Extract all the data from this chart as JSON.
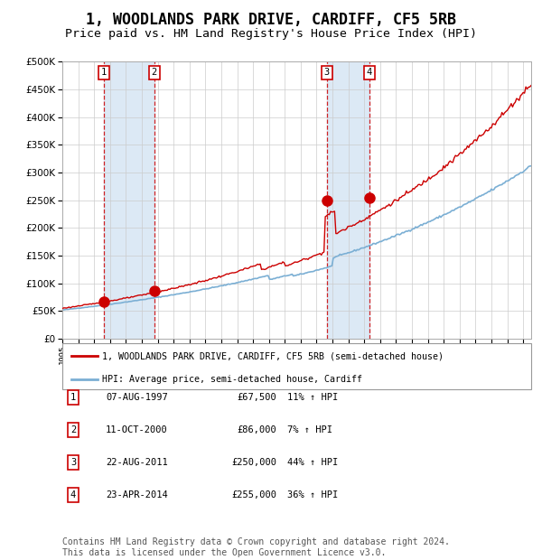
{
  "title": "1, WOODLANDS PARK DRIVE, CARDIFF, CF5 5RB",
  "subtitle": "Price paid vs. HM Land Registry's House Price Index (HPI)",
  "title_fontsize": 12,
  "subtitle_fontsize": 9.5,
  "ylim": [
    0,
    500000
  ],
  "yticks": [
    0,
    50000,
    100000,
    150000,
    200000,
    250000,
    300000,
    350000,
    400000,
    450000,
    500000
  ],
  "xlim_start": 1995.0,
  "xlim_end": 2024.5,
  "hpi_color": "#7bafd4",
  "price_color": "#cc0000",
  "dot_color": "#cc0000",
  "bg_color": "#ffffff",
  "grid_color": "#cccccc",
  "shade_color": "#dce9f5",
  "legend_label_price": "1, WOODLANDS PARK DRIVE, CARDIFF, CF5 5RB (semi-detached house)",
  "legend_label_hpi": "HPI: Average price, semi-detached house, Cardiff",
  "transactions": [
    {
      "num": 1,
      "date": "07-AUG-1997",
      "year": 1997.6,
      "price": 67500,
      "pct": "11%"
    },
    {
      "num": 2,
      "date": "11-OCT-2000",
      "year": 2000.78,
      "price": 86000,
      "pct": "7%"
    },
    {
      "num": 3,
      "date": "22-AUG-2011",
      "year": 2011.64,
      "price": 250000,
      "pct": "44%"
    },
    {
      "num": 4,
      "date": "23-APR-2014",
      "year": 2014.31,
      "price": 255000,
      "pct": "36%"
    }
  ],
  "table_rows": [
    [
      1,
      "07-AUG-1997",
      "£67,500",
      "11% ↑ HPI"
    ],
    [
      2,
      "11-OCT-2000",
      "£86,000",
      "7% ↑ HPI"
    ],
    [
      3,
      "22-AUG-2011",
      "£250,000",
      "44% ↑ HPI"
    ],
    [
      4,
      "23-APR-2014",
      "£255,000",
      "36% ↑ HPI"
    ]
  ],
  "footnote": "Contains HM Land Registry data © Crown copyright and database right 2024.\nThis data is licensed under the Open Government Licence v3.0.",
  "footnote_fontsize": 7.0
}
